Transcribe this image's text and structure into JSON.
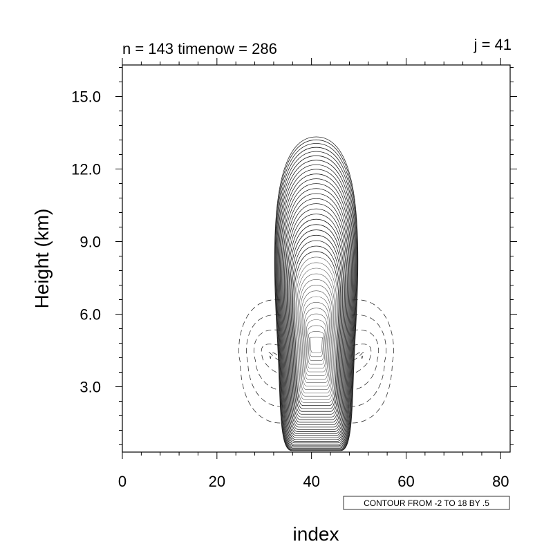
{
  "chart_data": {
    "type": "contour",
    "title_left": "n = 143 timenow = 286",
    "title_right": "j = 41",
    "xlabel": "index",
    "ylabel": "Height (km)",
    "xlim": [
      0,
      82
    ],
    "ylim": [
      0.3,
      16.3
    ],
    "x_ticks": [
      0,
      20,
      40,
      60,
      80
    ],
    "x_tick_labels": [
      "0",
      "20",
      "40",
      "60",
      "80"
    ],
    "y_ticks": [
      3.0,
      6.0,
      9.0,
      12.0,
      15.0
    ],
    "y_tick_labels": [
      "3.0",
      "6.0",
      "9.0",
      "12.0",
      "15.0"
    ],
    "contour_info": "CONTOUR FROM -2 TO 18 BY .5",
    "contour_min": -2,
    "contour_max": 18,
    "contour_interval": 0.5,
    "field_max_location": {
      "x": 41,
      "y": 5.0
    },
    "negative_lobe_centers": [
      {
        "x": 32.5,
        "y": 4.2
      },
      {
        "x": 49.5,
        "y": 4.2
      }
    ]
  }
}
